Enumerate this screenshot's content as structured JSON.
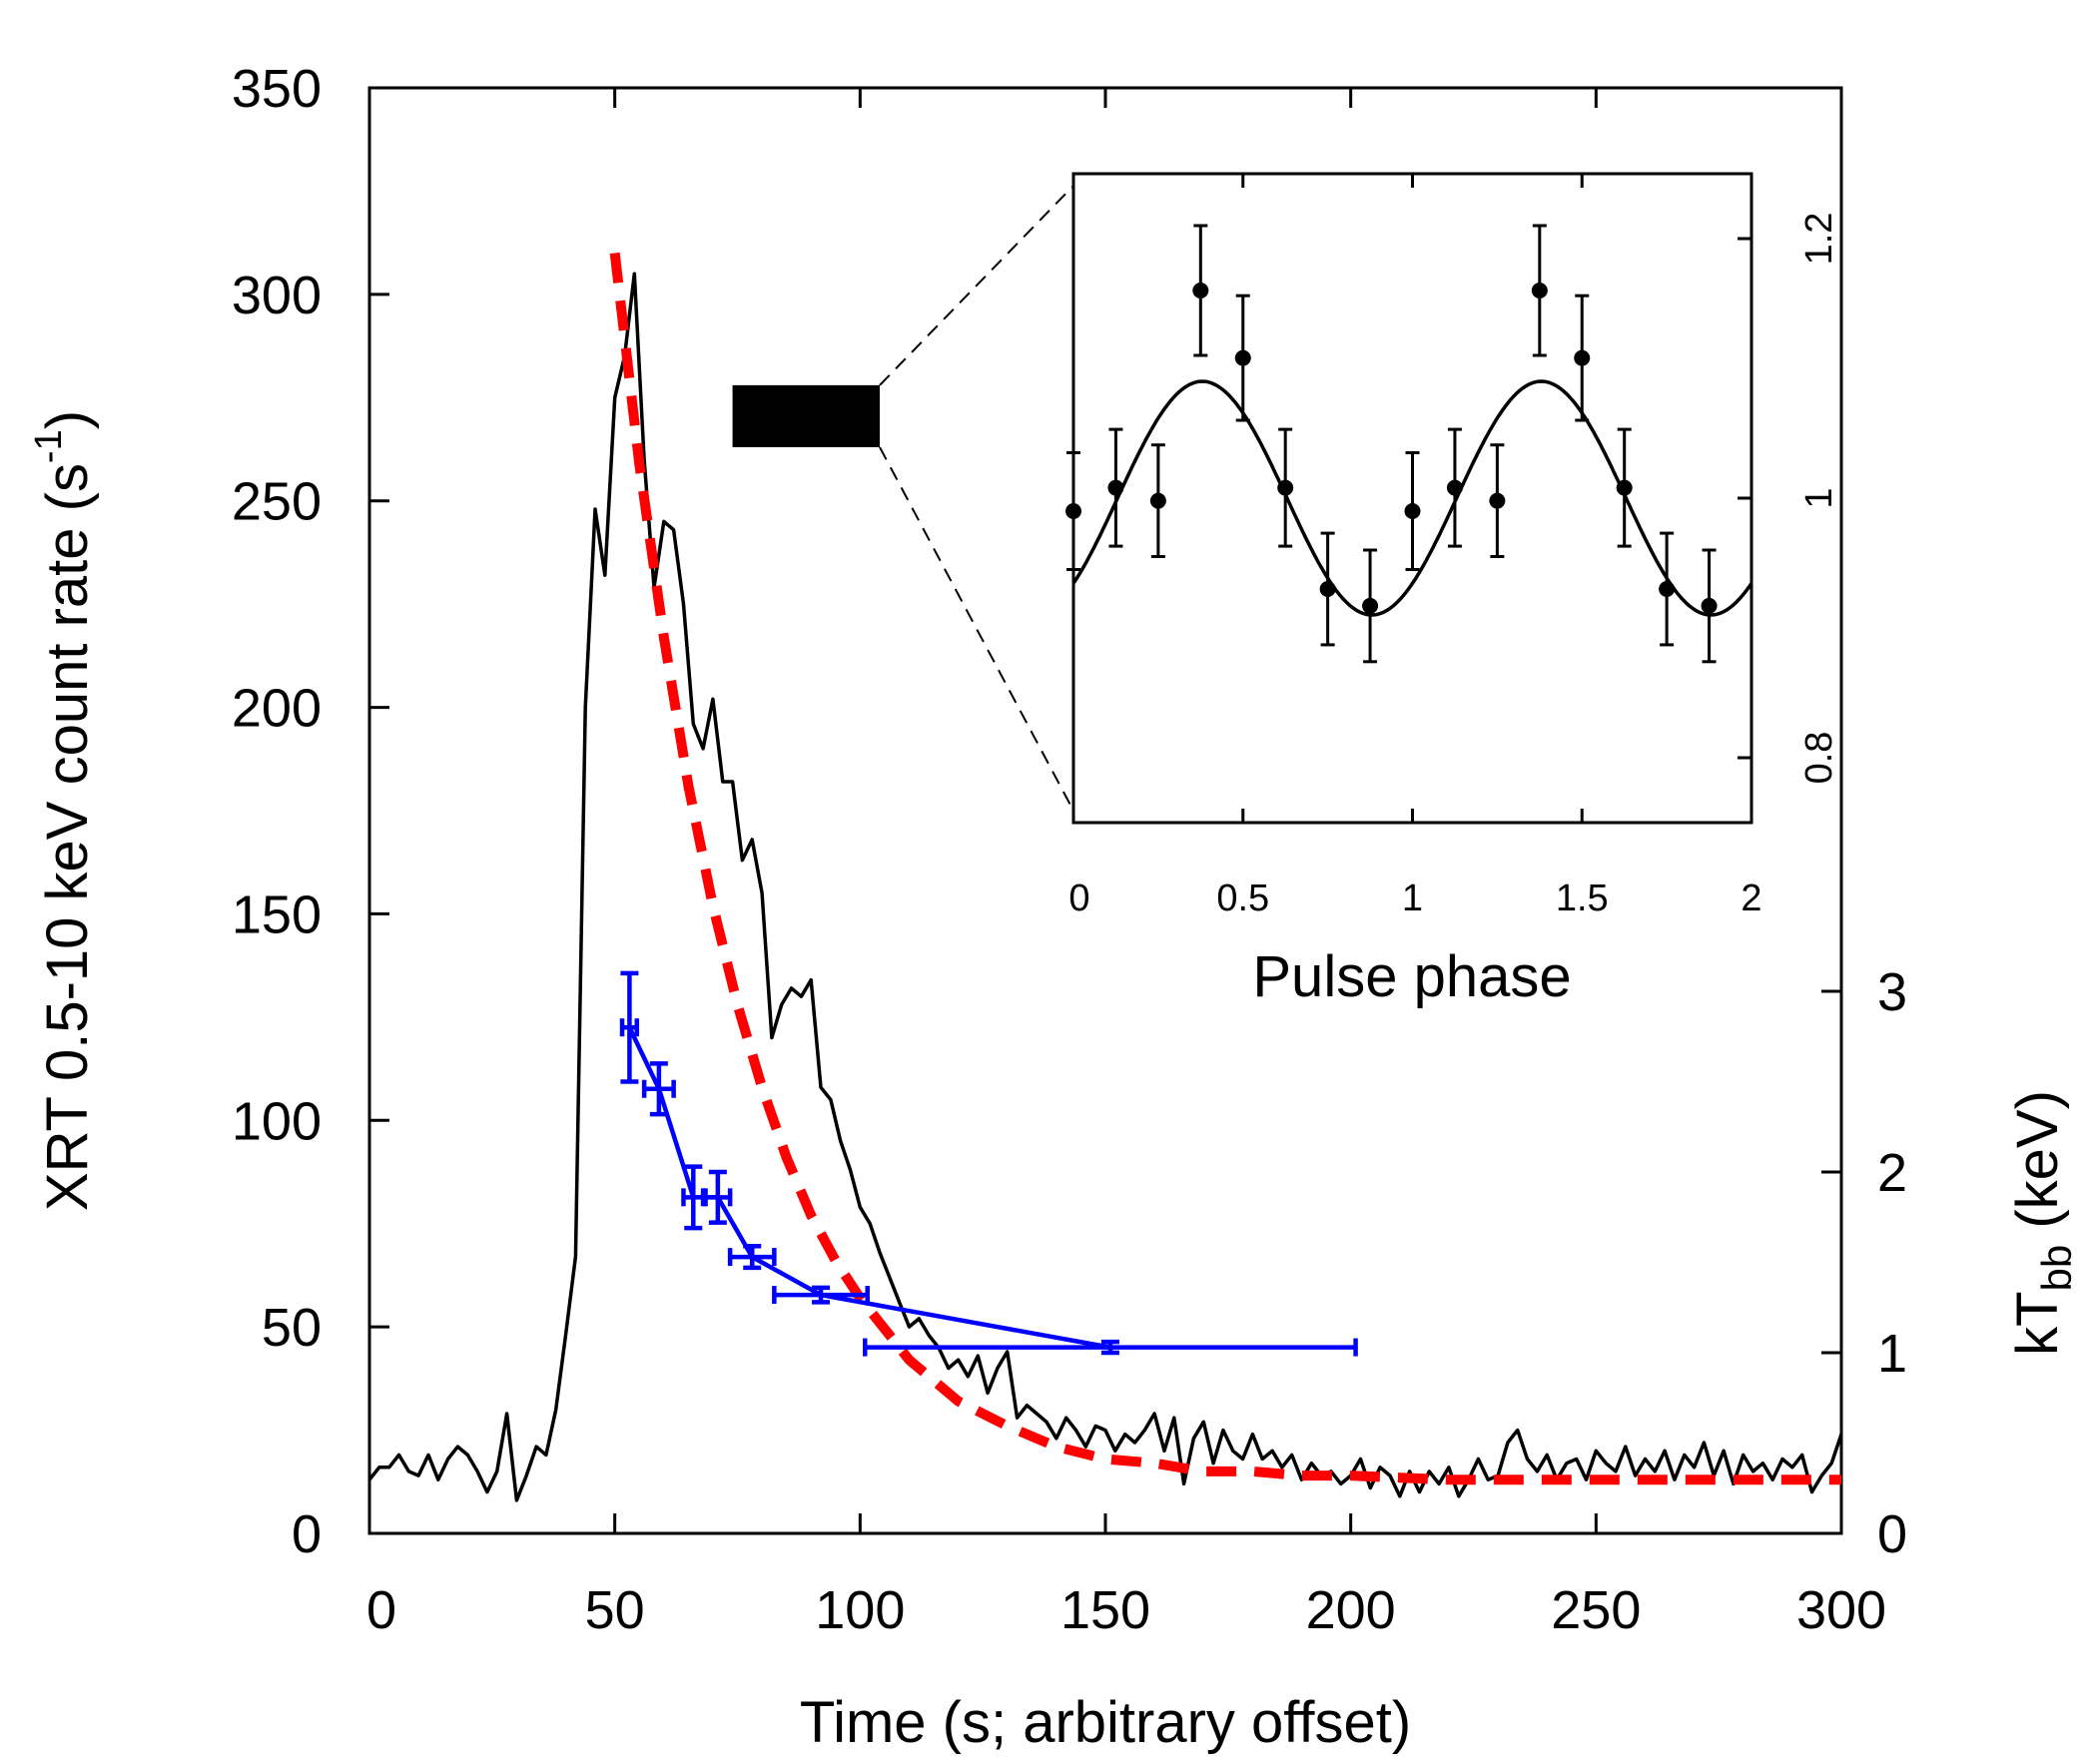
{
  "chart_data": {
    "type": "line",
    "xlabel": "Time (s; arbitrary offset)",
    "ylabel_main": "XRT 0.5-10 keV count rate (s",
    "ylabel_sup": "-1",
    "ylabel_close": ")",
    "y2label_main": "kT",
    "y2label_sub": "bb",
    "y2label_close": " (keV)",
    "xlim": [
      0,
      300
    ],
    "ylim": [
      0,
      350
    ],
    "y2lim": [
      0,
      8
    ],
    "xticks": [
      "0",
      "50",
      "100",
      "150",
      "200",
      "250",
      "300"
    ],
    "yticks": [
      "0",
      "50",
      "100",
      "150",
      "200",
      "250",
      "300",
      "350"
    ],
    "y2ticks": [
      "0",
      "1",
      "2",
      "3"
    ],
    "series": [
      {
        "role": "light-curve",
        "color": "#000000",
        "x": [
          0,
          2,
          4,
          6,
          8,
          10,
          12,
          14,
          16,
          18,
          20,
          22,
          24,
          26,
          28,
          30,
          32,
          34,
          36,
          38,
          40,
          42,
          44,
          46,
          48,
          50,
          52,
          54,
          56,
          58,
          60,
          62,
          64,
          66,
          68,
          70,
          72,
          74,
          76,
          78,
          80,
          82,
          84,
          86,
          88,
          90,
          92,
          94,
          96,
          98,
          100,
          102,
          104,
          106,
          108,
          110,
          112,
          114,
          116,
          118,
          120,
          122,
          124,
          126,
          128,
          130,
          132,
          134,
          136,
          138,
          140,
          142,
          144,
          146,
          148,
          150,
          152,
          154,
          156,
          158,
          160,
          162,
          164,
          166,
          168,
          170,
          172,
          174,
          176,
          178,
          180,
          182,
          184,
          186,
          188,
          190,
          192,
          194,
          196,
          198,
          200,
          202,
          204,
          206,
          208,
          210,
          212,
          214,
          216,
          218,
          220,
          222,
          224,
          226,
          228,
          230,
          232,
          234,
          236,
          238,
          240,
          242,
          244,
          246,
          248,
          250,
          252,
          254,
          256,
          258,
          260,
          262,
          264,
          266,
          268,
          270,
          272,
          274,
          276,
          278,
          280,
          282,
          284,
          286,
          288,
          290,
          292,
          294,
          296,
          298,
          300
        ],
        "y": [
          13,
          16,
          16,
          19,
          15,
          14,
          19,
          13,
          18,
          21,
          19,
          15,
          10,
          15,
          29,
          8,
          14,
          21,
          19,
          30,
          48,
          67,
          200,
          248,
          232,
          275,
          285,
          305,
          260,
          229,
          245,
          243,
          225,
          196,
          190,
          202,
          182,
          182,
          163,
          168,
          155,
          120,
          128,
          132,
          130,
          134,
          108,
          105,
          95,
          88,
          79,
          75,
          68,
          62,
          56,
          50,
          52,
          48,
          45,
          40,
          42,
          38,
          43,
          34,
          40,
          44,
          28,
          31,
          29,
          27,
          23,
          28,
          25,
          21,
          26,
          25,
          20,
          24,
          22,
          25,
          29,
          20,
          28,
          12,
          23,
          27,
          17,
          25,
          20,
          18,
          24,
          18,
          20,
          16,
          19,
          13,
          17,
          14,
          15,
          12,
          14,
          18,
          11,
          16,
          14,
          9,
          15,
          10,
          15,
          12,
          16,
          9,
          13,
          18,
          13,
          14,
          22,
          25,
          18,
          15,
          19,
          13,
          17,
          18,
          13,
          20,
          17,
          15,
          21,
          14,
          18,
          15,
          20,
          13,
          19,
          16,
          22,
          14,
          20,
          12,
          19,
          15,
          17,
          13,
          18,
          16,
          19,
          10,
          14,
          17,
          24
        ]
      },
      {
        "role": "exponential-fit",
        "color": "#ff0000",
        "x": [
          50,
          55,
          60,
          65,
          70,
          75,
          80,
          85,
          90,
          95,
          100,
          110,
          120,
          130,
          140,
          150,
          160,
          170,
          180,
          190,
          200,
          220,
          240,
          260,
          280,
          300
        ],
        "y": [
          310,
          259,
          217,
          181,
          152,
          128,
          108,
          91,
          77,
          66,
          57,
          42,
          32,
          26,
          21,
          18,
          17,
          15,
          15,
          14,
          14,
          13,
          13,
          13,
          13,
          13
        ]
      },
      {
        "role": "blackbody-temperature",
        "color": "#0000ff",
        "axis": "y2",
        "x": [
          53,
          59,
          66,
          71,
          78,
          92,
          151
        ],
        "xerr": [
          1.5,
          3,
          2,
          2.5,
          4.5,
          9.5,
          50
        ],
        "y": [
          2.8,
          2.46,
          1.86,
          1.86,
          1.53,
          1.32,
          1.03
        ],
        "yerr": [
          0.3,
          0.14,
          0.17,
          0.14,
          0.06,
          0.04,
          0.03
        ]
      }
    ],
    "highlight_box": {
      "x": [
        74,
        104
      ],
      "y": [
        263,
        278
      ],
      "color": "#000000"
    },
    "inset": {
      "type": "scatter",
      "xlabel": "Pulse phase",
      "xlim": [
        0,
        2
      ],
      "ylim": [
        0.75,
        1.25
      ],
      "xticks": [
        "0",
        "0.5",
        "1",
        "1.5",
        "2"
      ],
      "yticks": [
        "0.8",
        "1",
        "1.2"
      ],
      "points": {
        "x": [
          0.0,
          0.125,
          0.25,
          0.375,
          0.5,
          0.625,
          0.75,
          0.875,
          1.0,
          1.125,
          1.25,
          1.375,
          1.5,
          1.625,
          1.75,
          1.875
        ],
        "y": [
          0.99,
          1.008,
          0.998,
          1.16,
          1.108,
          1.008,
          0.93,
          0.917,
          0.99,
          1.008,
          0.998,
          1.16,
          1.108,
          1.008,
          0.93,
          0.917
        ],
        "yerr": [
          0.045,
          0.045,
          0.043,
          0.05,
          0.048,
          0.045,
          0.043,
          0.043,
          0.045,
          0.045,
          0.043,
          0.05,
          0.048,
          0.045,
          0.043,
          0.043
        ]
      },
      "model": {
        "type": "sinusoid",
        "mean": 1.0,
        "amplitude": 0.09,
        "peak_phase": 0.38,
        "period": 1.0
      }
    }
  }
}
